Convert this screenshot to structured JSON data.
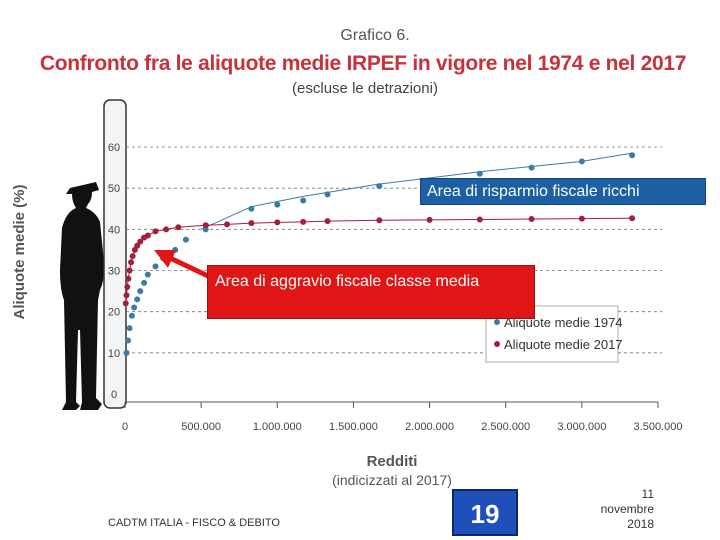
{
  "header": {
    "overline": "Grafico 6.",
    "title": "Confronto fra le aliquote medie IRPEF in vigore nel 1974 e nel 2017",
    "subtitle": "(escluse le detrazioni)"
  },
  "callouts": {
    "rich": "Area di risparmio fiscale ricchi",
    "middle": "Area di aggravio fiscale classe media"
  },
  "footer": {
    "left_text": "CADTM ITALIA - FISCO & DEBITO",
    "page_number": "19",
    "date": [
      "11",
      "novembre",
      "2018"
    ]
  },
  "colors": {
    "series_1974": "#3a7ca5",
    "series_2017": "#a31f3c",
    "title": "#c8323c",
    "callout_rich": "#1d5fa3",
    "callout_middle": "#e01515",
    "page_box": "#1f4fb8"
  },
  "icons": [
    "soldier-silhouette-icon",
    "red-arrow-icon"
  ],
  "chart_data": {
    "type": "scatter",
    "ylabel": "Aliquote medie (%)",
    "xlabel": "Redditi",
    "xlabel_sub": "(indicizzati al 2017)",
    "xlim": [
      0,
      3500000
    ],
    "ylim": [
      0,
      60
    ],
    "x_tick_labels": [
      "0",
      "500.000",
      "1.000.000",
      "1.500.000",
      "2.000.000",
      "2.500.000",
      "3.000.000",
      "3.500.000"
    ],
    "x_tick_values": [
      0,
      500000,
      1000000,
      1500000,
      2000000,
      2500000,
      3000000,
      3500000
    ],
    "y_tick_labels": [
      "0",
      "10",
      "20",
      "30",
      "40",
      "50",
      "60"
    ],
    "y_tick_values": [
      0,
      10,
      20,
      30,
      40,
      50,
      60
    ],
    "grid": "horizontal-dashed",
    "legend_position": "bottom-right",
    "series": [
      {
        "name": "Aliquote medie 1974",
        "color": "#3a7ca5",
        "points": [
          [
            10000,
            10
          ],
          [
            20000,
            13
          ],
          [
            30000,
            16
          ],
          [
            45000,
            19
          ],
          [
            60000,
            21
          ],
          [
            80000,
            23
          ],
          [
            100000,
            25
          ],
          [
            125000,
            27
          ],
          [
            150000,
            29
          ],
          [
            200000,
            31
          ],
          [
            250000,
            33
          ],
          [
            330000,
            35
          ],
          [
            400000,
            37.5
          ],
          [
            530000,
            40
          ],
          [
            830000,
            45
          ],
          [
            1000000,
            46
          ],
          [
            1170000,
            47
          ],
          [
            1330000,
            48.5
          ],
          [
            1670000,
            50.5
          ],
          [
            2000000,
            51.5
          ],
          [
            2330000,
            53.5
          ],
          [
            2670000,
            55
          ],
          [
            3000000,
            56.5
          ],
          [
            3330000,
            58
          ]
        ],
        "trend_line": [
          [
            500000,
            40
          ],
          [
            830000,
            45.5
          ],
          [
            1170000,
            48
          ],
          [
            1670000,
            51
          ],
          [
            2330000,
            54
          ],
          [
            3000000,
            56.5
          ],
          [
            3330000,
            58.5
          ]
        ]
      },
      {
        "name": "Aliquote medie 2017",
        "color": "#a31f3c",
        "points": [
          [
            5000,
            22
          ],
          [
            10000,
            24
          ],
          [
            15000,
            26
          ],
          [
            22000,
            28
          ],
          [
            30000,
            30
          ],
          [
            40000,
            32
          ],
          [
            50000,
            33.5
          ],
          [
            65000,
            35
          ],
          [
            80000,
            36
          ],
          [
            100000,
            37
          ],
          [
            125000,
            38
          ],
          [
            150000,
            38.5
          ],
          [
            200000,
            39.5
          ],
          [
            270000,
            40
          ],
          [
            350000,
            40.5
          ],
          [
            530000,
            41
          ],
          [
            670000,
            41.2
          ],
          [
            830000,
            41.5
          ],
          [
            1000000,
            41.7
          ],
          [
            1170000,
            41.8
          ],
          [
            1330000,
            42
          ],
          [
            1670000,
            42.2
          ],
          [
            2000000,
            42.3
          ],
          [
            2330000,
            42.4
          ],
          [
            2670000,
            42.5
          ],
          [
            3000000,
            42.6
          ],
          [
            3330000,
            42.7
          ]
        ]
      }
    ]
  }
}
